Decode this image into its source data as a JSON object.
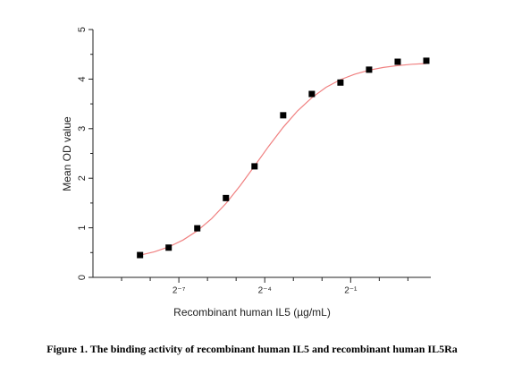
{
  "chart_data": {
    "type": "scatter",
    "caption": "Figure 1. The binding activity of recombinant human IL5  and recombinant human IL5Ra",
    "x_label": "Recombinant human IL5 (µg/mL)",
    "y_label": "Mean OD value",
    "x_log_base": 2,
    "x": [
      0.0030518,
      0.0061035,
      0.012207,
      0.024414,
      0.048828,
      0.097656,
      0.19531,
      0.39063,
      0.78125,
      1.5625,
      3.125
    ],
    "values": [
      0.45,
      0.6,
      0.99,
      1.6,
      2.24,
      3.27,
      3.7,
      3.93,
      4.19,
      4.35,
      4.37
    ],
    "color": "#000000",
    "fit_curve": {
      "color": "#f08080",
      "x": [
        0.003052,
        0.004316,
        0.006104,
        0.008632,
        0.012207,
        0.017263,
        0.024414,
        0.034527,
        0.048828,
        0.069053,
        0.097656,
        0.138107,
        0.195313,
        0.276214,
        0.390625,
        0.552427,
        0.78125,
        1.104854,
        1.5625,
        2.209709,
        3.125
      ],
      "values": [
        0.447,
        0.516,
        0.614,
        0.752,
        0.939,
        1.184,
        1.491,
        1.852,
        2.248,
        2.65,
        3.027,
        3.357,
        3.625,
        3.835,
        3.989,
        4.1,
        4.18,
        4.235,
        4.272,
        4.3,
        4.314
      ]
    },
    "xlim": [
      0.0009765625,
      3.482
    ],
    "xticks": [
      {
        "value": 0.0078125,
        "label": "2⁻⁷"
      },
      {
        "value": 0.0625,
        "label": "2⁻⁴"
      },
      {
        "value": 0.5,
        "label": "2⁻¹"
      }
    ],
    "minor_xticks": [
      0.001953125,
      0.00390625,
      0.015625,
      0.03125,
      0.125,
      0.25,
      1,
      2
    ],
    "ylim": [
      0,
      5
    ],
    "yticks": [
      0,
      1,
      2,
      3,
      4,
      5
    ],
    "minor_yticks": [
      0.5,
      1.5,
      2.5,
      3.5,
      4.5
    ]
  }
}
